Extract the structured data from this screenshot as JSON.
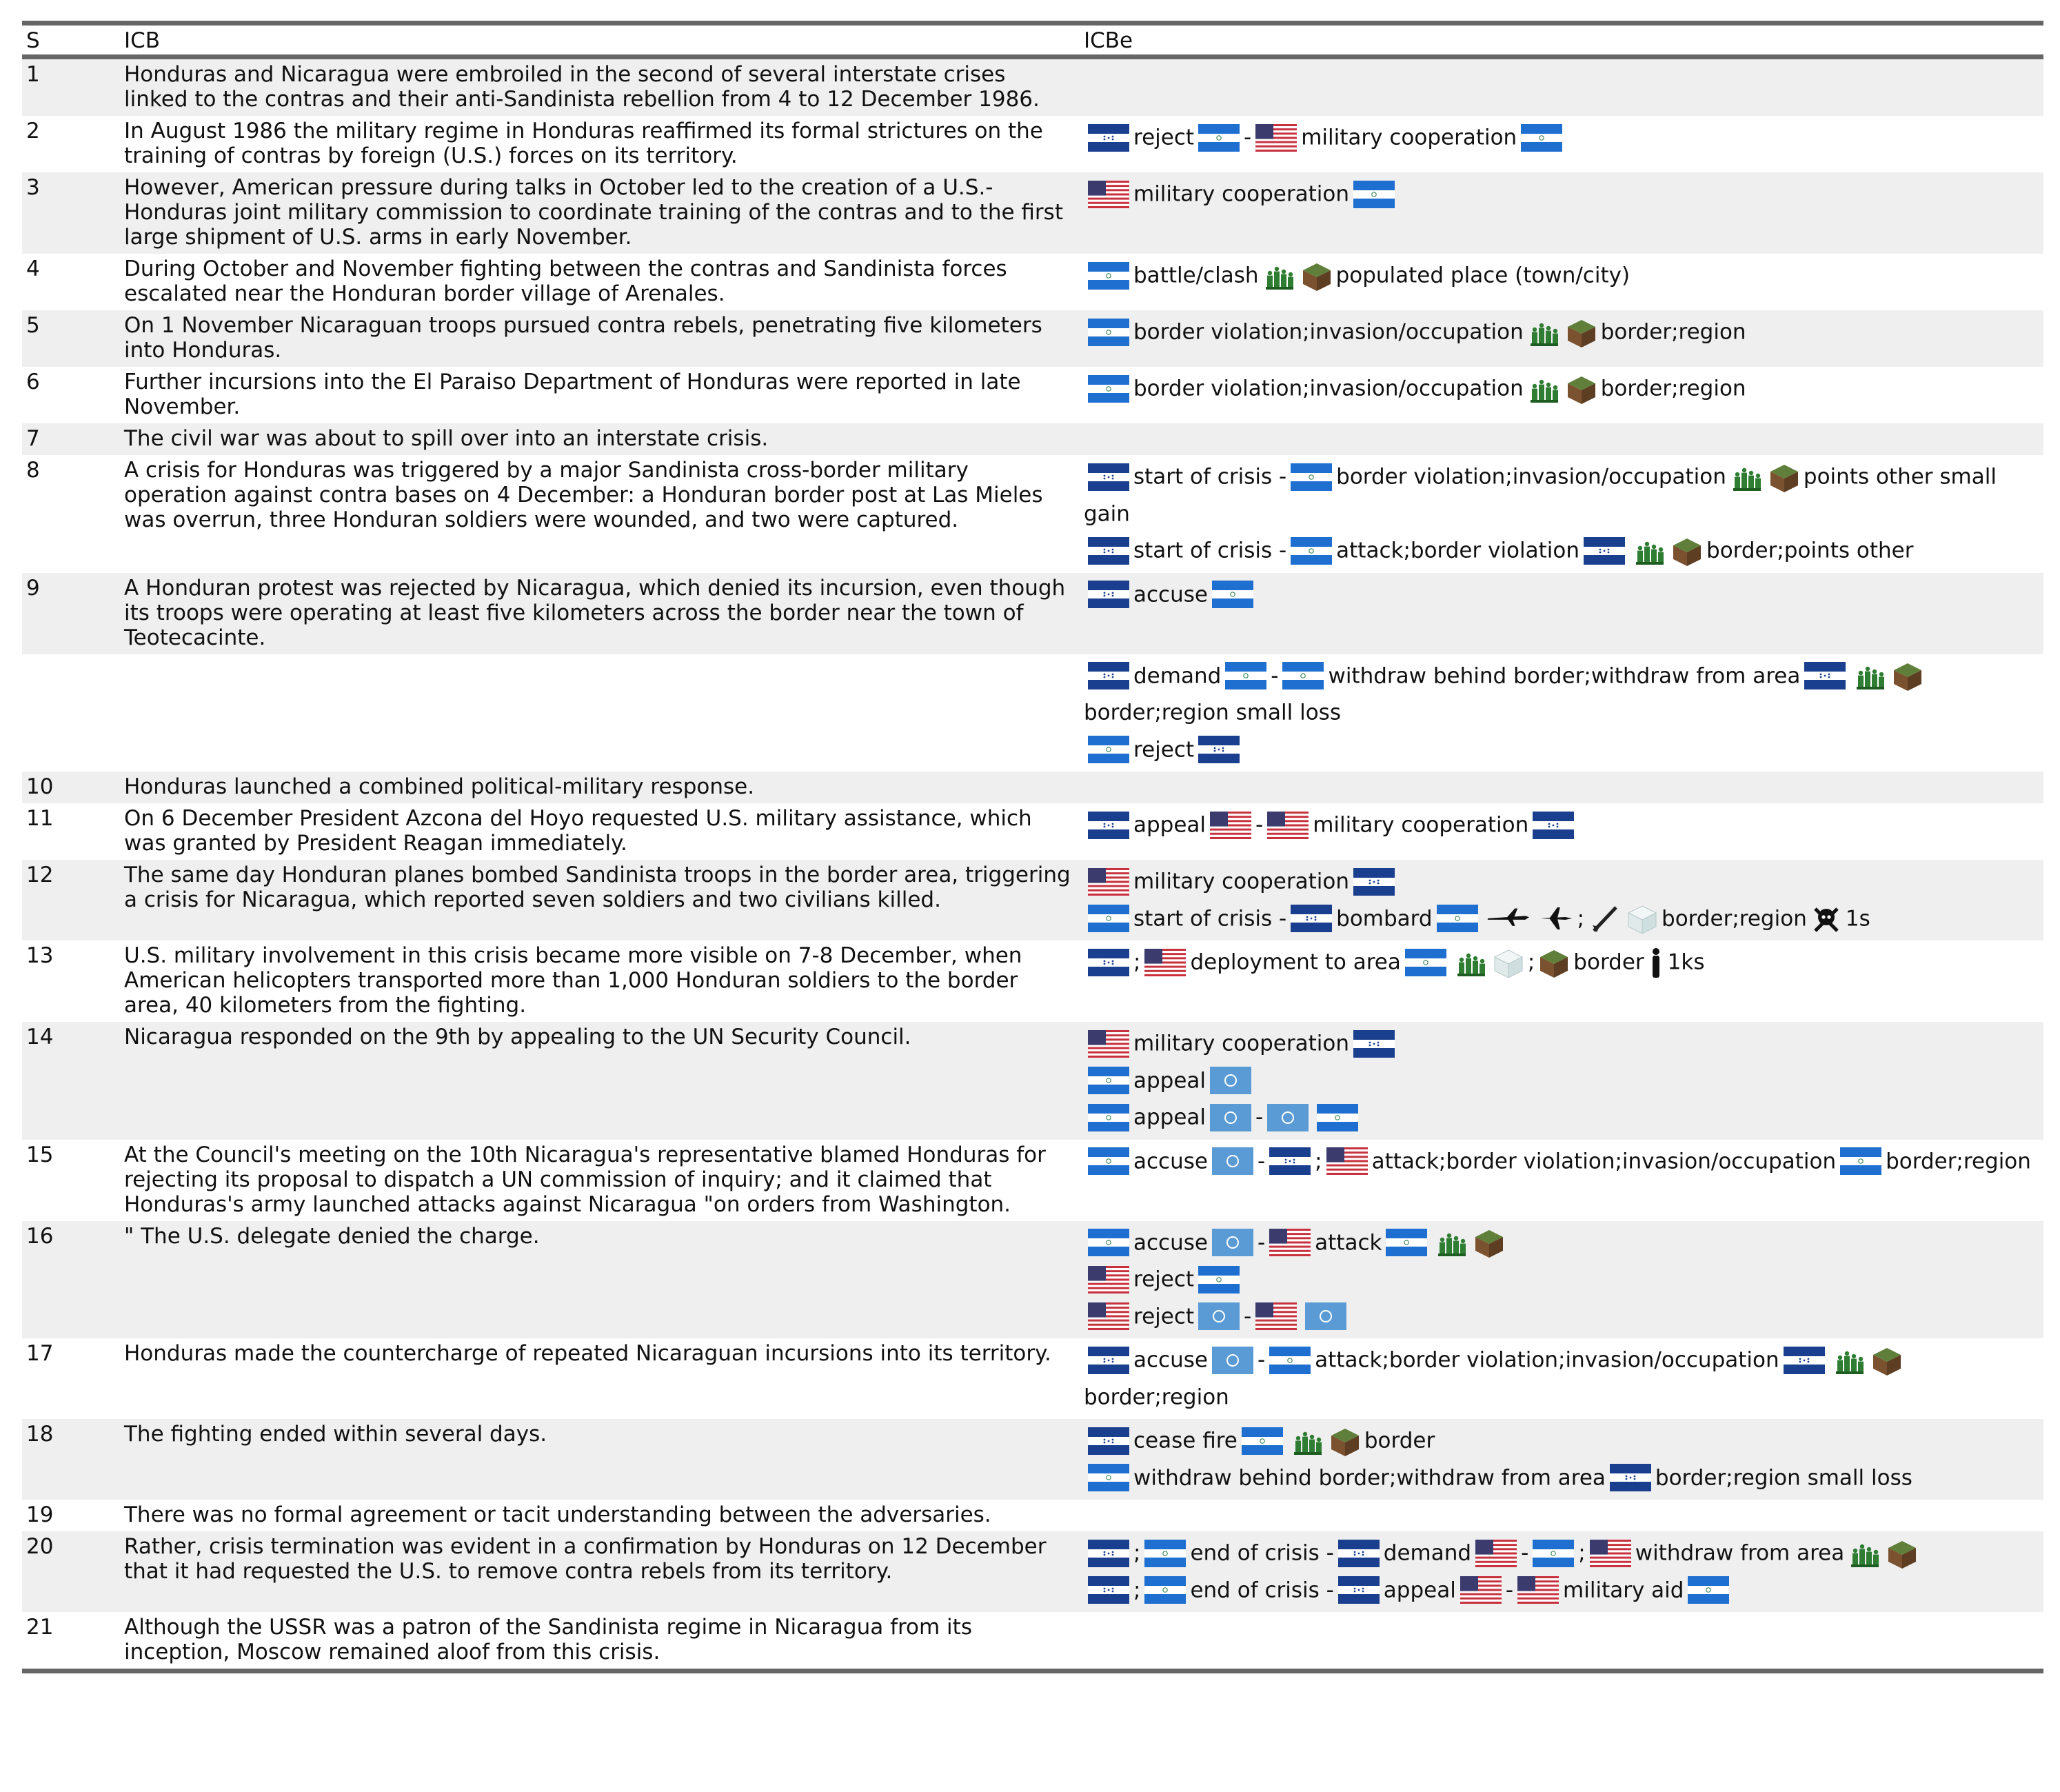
{
  "header": {
    "s": "S",
    "icb": "ICB",
    "icbe": "ICBe"
  },
  "rows": [
    {
      "s": "1",
      "icb": "Honduras and Nicaragua were embroiled in the second of several interstate crises linked to the contras and their anti-Sandinista rebellion from 4 to 12 December 1986.",
      "icbe": []
    },
    {
      "s": "2",
      "icb": "In August 1986 the military regime in Honduras reaffirmed its formal strictures on the training of contras by foreign (U.S.) forces on its territory.",
      "icbe": [
        [
          "reject",
          "-",
          "military cooperation"
        ]
      ]
    },
    {
      "s": "3",
      "icb": "However, American pressure during talks in October led to the creation of a U.S.-Honduras joint military commission to coordinate training of the contras and to the first large shipment of U.S. arms in early November.",
      "icbe": [
        [
          "military cooperation"
        ]
      ]
    },
    {
      "s": "4",
      "icb": "During October and November fighting between the contras and Sandinista forces escalated near the Honduran border village of Arenales.",
      "icbe": [
        [
          "battle/clash",
          "populated place (town/city)"
        ]
      ]
    },
    {
      "s": "5",
      "icb": "On 1 November Nicaraguan troops pursued contra rebels, penetrating five kilometers into Honduras.",
      "icbe": [
        [
          "border violation;invasion/occupation",
          "border;region"
        ]
      ]
    },
    {
      "s": "6",
      "icb": "Further incursions into the El Paraiso Department of Honduras were reported in late November.",
      "icbe": [
        [
          "border violation;invasion/occupation",
          "border;region"
        ]
      ]
    },
    {
      "s": "7",
      "icb": "The civil war was about to spill over into an interstate crisis.",
      "icbe": []
    },
    {
      "s": "8",
      "icb": "A crisis for Honduras was triggered by a major Sandinista cross-border military operation against contra bases on 4 December: a Honduran border post at Las Mieles was overrun, three Honduran soldiers were wounded, and two were captured.",
      "icbe": [
        [
          "start of crisis -",
          "border violation;invasion/occupation",
          "points other small gain"
        ],
        [
          "start of crisis -",
          "attack;border violation",
          "border;points other"
        ]
      ]
    },
    {
      "s": "9",
      "icb": "A Honduran protest was rejected by Nicaragua, which denied its incursion, even though its troops were operating at least five kilometers across the border near the town of Teotecacinte.",
      "icbe": [
        [
          "accuse"
        ]
      ]
    },
    {
      "s": null,
      "icb": null,
      "icbe": [
        [
          "demand",
          "-",
          "withdraw behind border;withdraw from area",
          "border;region small loss"
        ],
        [
          "reject"
        ]
      ]
    },
    {
      "s": "10",
      "icb": "Honduras launched a combined political-military response.",
      "icbe": []
    },
    {
      "s": "11",
      "icb": "On 6 December President Azcona del Hoyo requested U.S. military assistance, which was granted by President Reagan immediately.",
      "icbe": [
        [
          "appeal",
          "-",
          "military cooperation"
        ]
      ]
    },
    {
      "s": "12",
      "icb": "The same day Honduran planes bombed Sandinista troops in the border area, triggering a crisis for Nicaragua, which reported seven soldiers and two civilians killed.",
      "icbe": [
        [
          "military cooperation"
        ],
        [
          "start of crisis -",
          "bombard",
          ";",
          "border;region",
          "1s"
        ]
      ]
    },
    {
      "s": "13",
      "icb": "U.S. military involvement in this crisis became more visible on 7-8 December, when American helicopters transported more than 1,000 Honduran soldiers to the border area, 40 kilometers from the fighting.",
      "icbe": [
        [
          ";",
          "deployment to area",
          ";",
          "border",
          "1ks"
        ]
      ]
    },
    {
      "s": "14",
      "icb": "Nicaragua responded on the 9th by appealing to the UN Security Council.",
      "icbe": [
        [
          "military cooperation"
        ],
        [
          "appeal"
        ],
        [
          "appeal",
          "-"
        ]
      ]
    },
    {
      "s": "15",
      "icb": "At the Council's meeting on the 10th Nicaragua's representative blamed Honduras for rejecting its proposal to dispatch a UN commission of inquiry; and it claimed that Honduras's army launched attacks against Nicaragua \"on orders from Washington.",
      "icbe": [
        [
          "accuse",
          "-",
          ";",
          "attack;border violation;invasion/occupation",
          "border;region"
        ]
      ]
    },
    {
      "s": "16",
      "icb": "\" The U.S. delegate denied the charge.",
      "icbe": [
        [
          "accuse",
          "-",
          "attack"
        ],
        [
          "reject"
        ],
        [
          "reject",
          "-"
        ]
      ]
    },
    {
      "s": "17",
      "icb": "Honduras made the countercharge of repeated Nicaraguan incursions into its territory.",
      "icbe": [
        [
          "accuse",
          "-",
          "attack;border violation;invasion/occupation",
          "border;region"
        ]
      ]
    },
    {
      "s": "18",
      "icb": "The fighting ended within several days.",
      "icbe": [
        [
          "cease fire",
          "border"
        ],
        [
          "withdraw behind border;withdraw from area",
          "border;region small loss"
        ]
      ]
    },
    {
      "s": "19",
      "icb": "There was no formal agreement or tacit understanding between the adversaries.",
      "icbe": []
    },
    {
      "s": "20",
      "icb": "Rather, crisis termination was evident in a confirmation by Honduras on 12 December that it had requested the U.S. to remove contra rebels from its territory.",
      "icbe": [
        [
          ";",
          "end of crisis -",
          "demand",
          "-",
          ";",
          "withdraw from area"
        ],
        [
          ";",
          "end of crisis -",
          "appeal",
          "-",
          "military aid"
        ]
      ]
    },
    {
      "s": "21",
      "icb": "Although the USSR was a patron of the Sandinista regime in Nicaragua from its inception, Moscow remained aloof from this crisis.",
      "icbe": []
    }
  ]
}
